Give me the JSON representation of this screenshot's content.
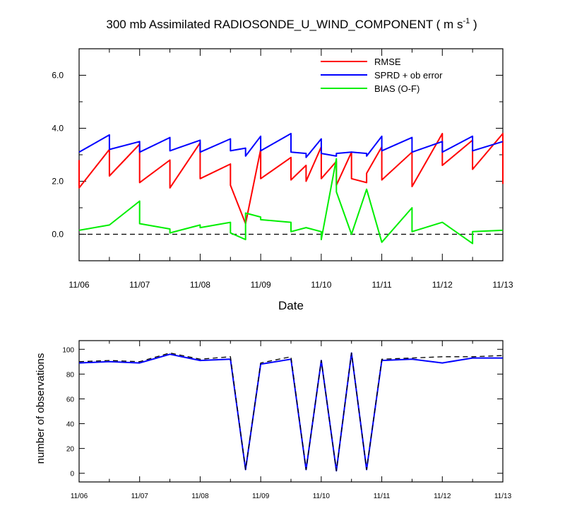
{
  "chart_data": [
    {
      "type": "line",
      "title_main": "300 mb Assimilated RADIOSONDE_U_WIND_COMPONENT ( m s",
      "title_sup": "-1",
      "title_end": " )",
      "xlabel": "Date",
      "ylabel": "",
      "xlim": [
        0,
        7
      ],
      "ylim": [
        -1,
        7
      ],
      "x_ticks": [
        0,
        1,
        2,
        3,
        4,
        5,
        6,
        7
      ],
      "x_tick_labels": [
        "11/06",
        "11/07",
        "11/08",
        "11/09",
        "11/10",
        "11/11",
        "11/12",
        "11/13"
      ],
      "y_ticks": [
        0,
        2,
        4,
        6
      ],
      "y_tick_labels": [
        "0.0",
        "2.0",
        "4.0",
        "6.0"
      ],
      "zero_line": {
        "value": 0,
        "style": "dashed",
        "color": "#000000"
      },
      "legend_placement": "top-right",
      "series": [
        {
          "name": "RMSE",
          "color": "#ff0000",
          "x": [
            0,
            0,
            0.5,
            0.5,
            1,
            1,
            1.5,
            1.5,
            2,
            2,
            2.5,
            2.5,
            2.75,
            2.75,
            3,
            3,
            3.5,
            3.5,
            3.75,
            3.75,
            4,
            4,
            4.25,
            4.25,
            4.5,
            4.5,
            4.75,
            4.75,
            5,
            5,
            5.5,
            5.5,
            6,
            6,
            6.5,
            6.5,
            7,
            7
          ],
          "y": [
            2.8,
            1.75,
            3.2,
            2.2,
            3.4,
            1.95,
            2.8,
            1.75,
            3.45,
            2.1,
            2.65,
            1.85,
            0.4,
            0.4,
            3.2,
            2.1,
            2.9,
            2.05,
            2.6,
            2.0,
            3.3,
            2.1,
            2.75,
            1.85,
            3.1,
            2.1,
            1.95,
            2.3,
            3.3,
            2.05,
            3.1,
            1.8,
            3.8,
            2.6,
            3.55,
            2.45,
            3.8,
            1.9
          ]
        },
        {
          "name": "SPRD + ob error",
          "color": "#0000ff",
          "x": [
            0,
            0.5,
            0.5,
            1,
            1,
            1.5,
            1.5,
            2,
            2,
            2.5,
            2.5,
            2.75,
            2.75,
            3,
            3,
            3.5,
            3.5,
            3.75,
            3.75,
            4,
            4,
            4.25,
            4.25,
            4.5,
            4.5,
            4.75,
            4.75,
            5,
            5,
            5.5,
            5.5,
            6,
            6,
            6.5,
            6.5,
            7
          ],
          "y": [
            3.1,
            3.75,
            3.2,
            3.5,
            3.1,
            3.65,
            3.15,
            3.55,
            3.1,
            3.6,
            3.15,
            3.25,
            2.95,
            3.7,
            3.15,
            3.8,
            3.1,
            3.05,
            2.9,
            3.6,
            3.05,
            2.95,
            3.05,
            3.1,
            3.1,
            3.05,
            2.95,
            3.7,
            3.15,
            3.65,
            3.1,
            3.5,
            3.1,
            3.7,
            3.15,
            3.5
          ]
        },
        {
          "name": "BIAS (O-F)",
          "color": "#00ee00",
          "x": [
            0,
            0.5,
            1,
            1,
            1.5,
            1.5,
            2,
            2,
            2.5,
            2.5,
            2.75,
            2.75,
            3,
            3,
            3.5,
            3.5,
            3.75,
            3.75,
            4,
            4,
            4.25,
            4.25,
            4.5,
            4.5,
            4.75,
            4.75,
            5,
            5,
            5.5,
            5.5,
            6,
            6,
            6.5,
            6.5,
            7
          ],
          "y": [
            0.15,
            0.35,
            1.25,
            0.4,
            0.2,
            0.05,
            0.35,
            0.25,
            0.45,
            0.05,
            -0.2,
            0.8,
            0.65,
            0.55,
            0.45,
            0.1,
            0.25,
            0.25,
            0.1,
            -0.2,
            2.85,
            1.6,
            0.0,
            0.0,
            1.7,
            1.7,
            -0.3,
            -0.3,
            1.0,
            0.1,
            0.45,
            0.45,
            -0.35,
            0.1,
            0.15
          ]
        }
      ]
    },
    {
      "type": "line",
      "title": "",
      "xlabel": "",
      "ylabel": "number of observations",
      "xlim": [
        0,
        7
      ],
      "ylim": [
        -7,
        107
      ],
      "x_ticks": [
        0,
        1,
        2,
        3,
        4,
        5,
        6,
        7
      ],
      "x_tick_labels": [
        "11/06",
        "11/07",
        "11/08",
        "11/09",
        "11/10",
        "11/11",
        "11/12",
        "11/13"
      ],
      "y_ticks": [
        0,
        20,
        40,
        60,
        80,
        100
      ],
      "y_tick_labels": [
        "0",
        "20",
        "40",
        "60",
        "80",
        "100"
      ],
      "series": [
        {
          "color": "#0000ff",
          "style": "solid",
          "x": [
            0,
            0.5,
            1,
            1.5,
            2,
            2.5,
            2.75,
            3,
            3.5,
            3.75,
            4,
            4.25,
            4.5,
            4.75,
            5,
            5.5,
            6,
            6.5,
            7
          ],
          "y": [
            89,
            90,
            89,
            96,
            91,
            92,
            3,
            88,
            92,
            3,
            91,
            2,
            97,
            3,
            91,
            92,
            89,
            93,
            93
          ]
        },
        {
          "color": "#000000",
          "style": "dashed",
          "x": [
            0,
            0.5,
            1,
            1.5,
            2,
            2.5,
            2.75,
            3,
            3.5,
            3.75,
            4,
            4.25,
            4.5,
            4.75,
            5,
            5.5,
            6,
            6.5,
            7
          ],
          "y": [
            90,
            91,
            90,
            97,
            92,
            94,
            3,
            89,
            94,
            3,
            91,
            2,
            97,
            3,
            92,
            93,
            94,
            94,
            95
          ]
        }
      ]
    }
  ]
}
